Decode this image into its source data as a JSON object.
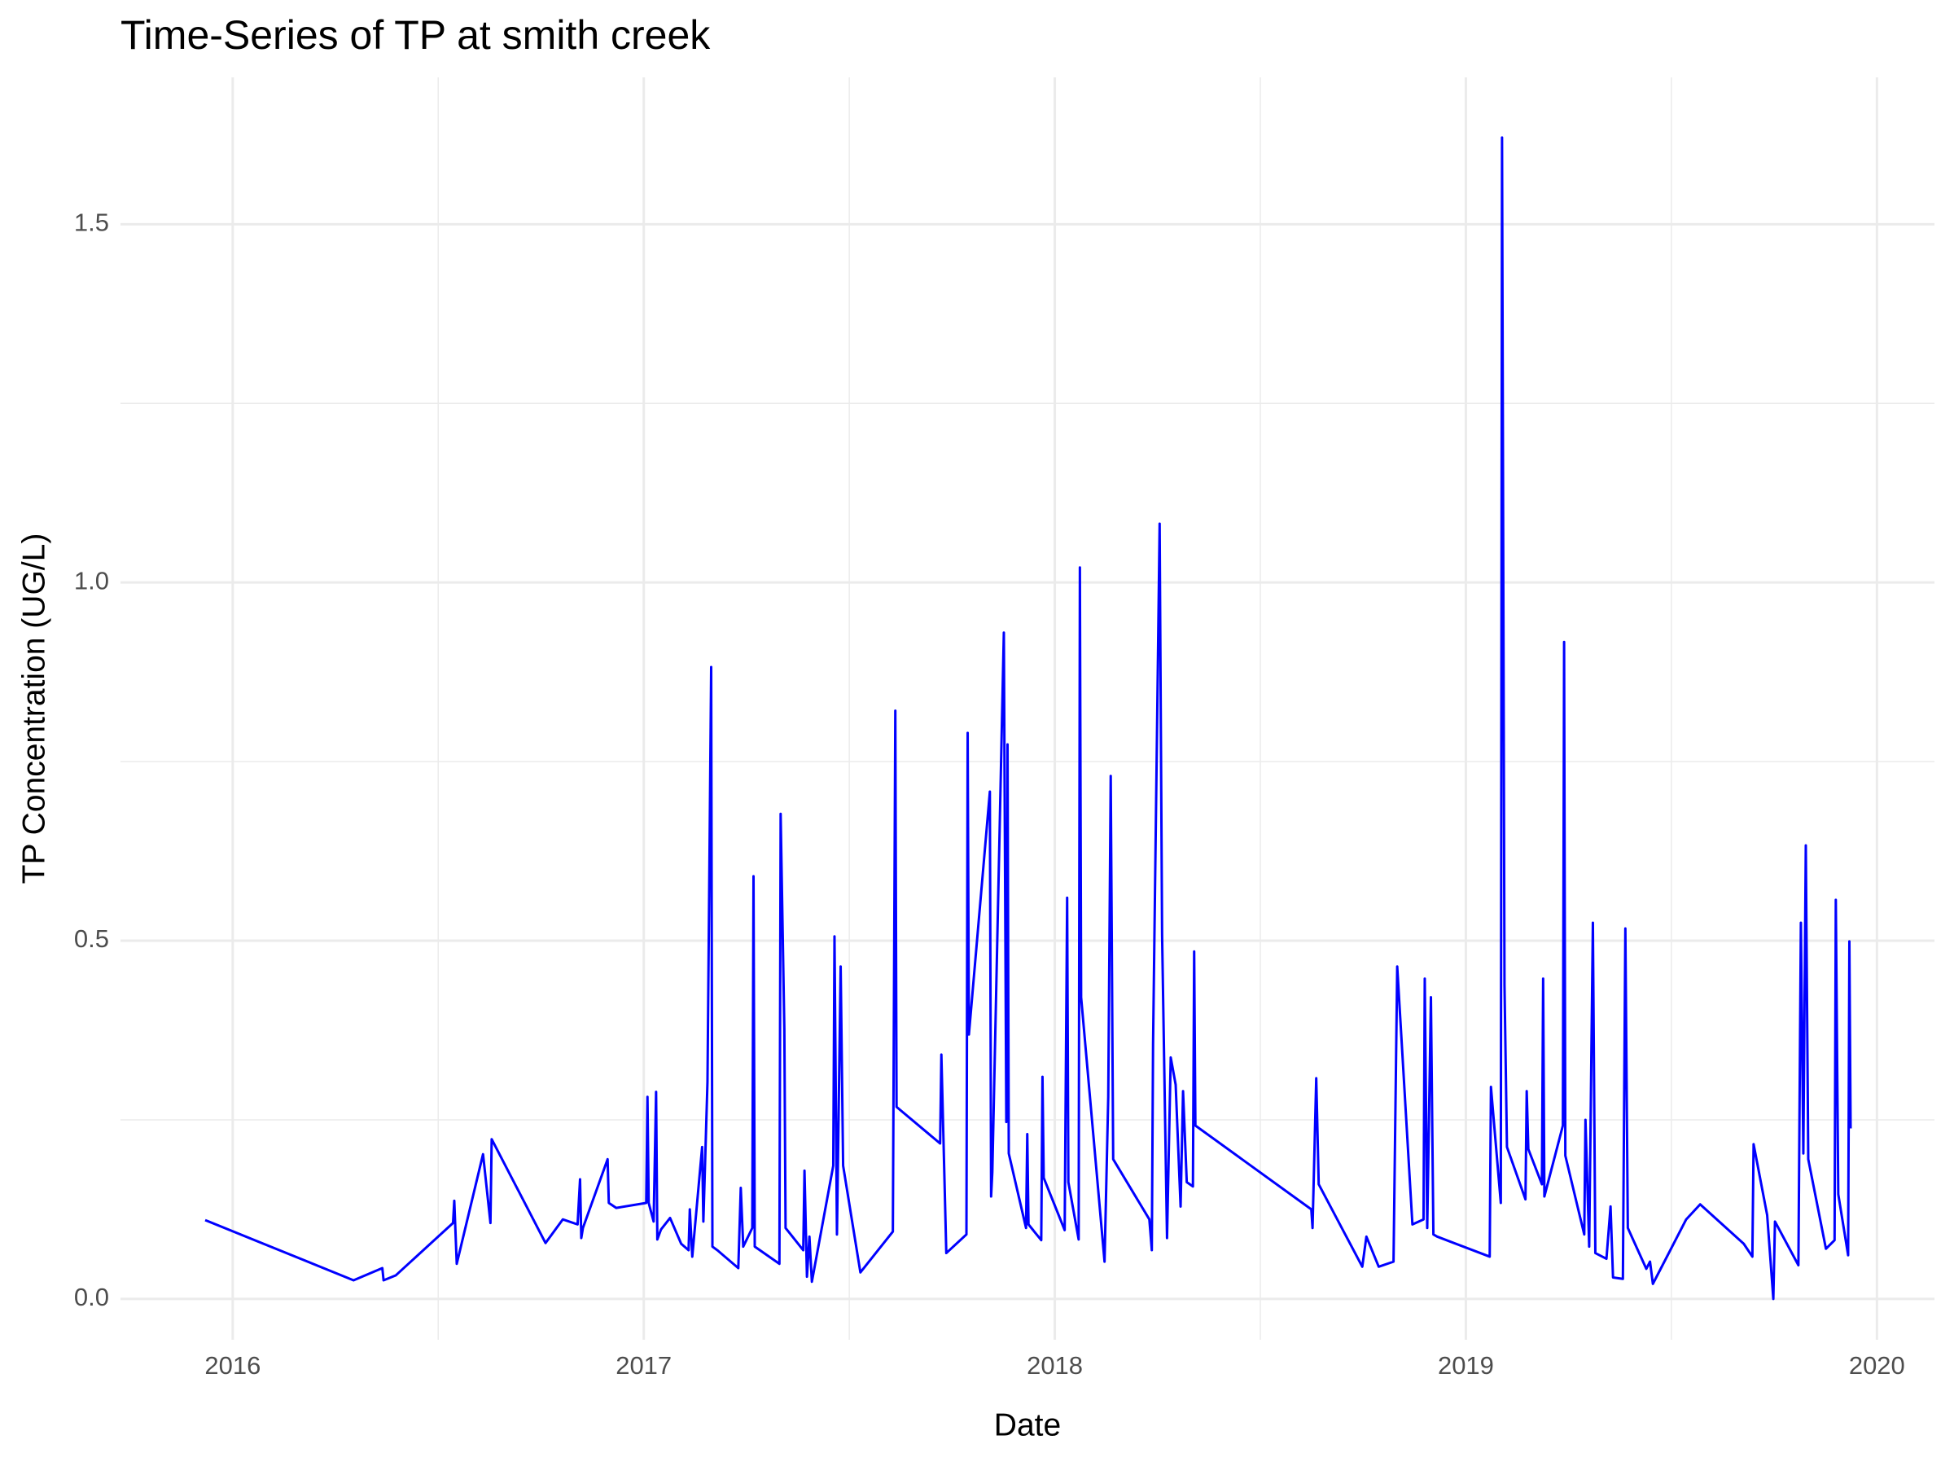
{
  "chart_data": {
    "type": "line",
    "title": "Time-Series of TP at smith creek",
    "x_label": "Date",
    "y_label": "TP Concentration (UG/L)",
    "color": "blue",
    "grid": true,
    "xlim": [
      2015.727,
      2020.14
    ],
    "ylim": [
      -0.057,
      1.705
    ],
    "xticks": [
      2016,
      2017,
      2018,
      2019,
      2020
    ],
    "yticks": [
      {
        "value": 0,
        "label": "0.0"
      },
      0.5,
      {
        "value": 1,
        "label": "1.0"
      },
      1.5
    ],
    "x": [
      2015.933,
      2016.294,
      2016.364,
      2016.367,
      2016.397,
      2016.536,
      2016.539,
      2016.545,
      2016.609,
      2016.627,
      2016.63,
      2016.761,
      2016.803,
      2016.839,
      2016.845,
      2016.848,
      2016.852,
      2016.912,
      2016.915,
      2016.933,
      2017.006,
      2017.009,
      2017.012,
      2017.024,
      2017.03,
      2017.033,
      2017.042,
      2017.064,
      2017.091,
      2017.109,
      2017.112,
      2017.118,
      2017.142,
      2017.145,
      2017.155,
      2017.164,
      2017.167,
      2017.179,
      2017.23,
      2017.236,
      2017.242,
      2017.264,
      2017.267,
      2017.27,
      2017.33,
      2017.333,
      2017.342,
      2017.345,
      2017.352,
      2017.388,
      2017.391,
      2017.397,
      2017.403,
      2017.409,
      2017.461,
      2017.464,
      2017.47,
      2017.479,
      2017.485,
      2017.527,
      2017.606,
      2017.612,
      2017.615,
      2017.721,
      2017.724,
      2017.736,
      2017.785,
      2017.788,
      2017.791,
      2017.842,
      2017.845,
      2017.848,
      2017.876,
      2017.882,
      2017.885,
      2017.888,
      2017.93,
      2017.933,
      2017.936,
      2017.967,
      2017.97,
      2017.973,
      2018.024,
      2018.03,
      2018.033,
      2018.058,
      2018.061,
      2018.064,
      2018.121,
      2018.13,
      2018.136,
      2018.142,
      2018.23,
      2018.236,
      2018.239,
      2018.255,
      2018.261,
      2018.273,
      2018.282,
      2018.294,
      2018.306,
      2018.312,
      2018.321,
      2018.336,
      2018.339,
      2018.342,
      2018.624,
      2018.627,
      2018.636,
      2018.642,
      2018.748,
      2018.758,
      2018.788,
      2018.824,
      2018.833,
      2018.87,
      2018.897,
      2018.9,
      2018.906,
      2018.915,
      2018.921,
      2018.93,
      2019.058,
      2019.061,
      2019.085,
      2019.088,
      2019.094,
      2019.1,
      2019.145,
      2019.148,
      2019.152,
      2019.185,
      2019.188,
      2019.191,
      2019.236,
      2019.239,
      2019.242,
      2019.288,
      2019.291,
      2019.3,
      2019.309,
      2019.315,
      2019.342,
      2019.352,
      2019.358,
      2019.382,
      2019.388,
      2019.394,
      2019.439,
      2019.448,
      2019.455,
      2019.536,
      2019.57,
      2019.676,
      2019.697,
      2019.7,
      2019.733,
      2019.748,
      2019.752,
      2019.809,
      2019.815,
      2019.821,
      2019.827,
      2019.833,
      2019.876,
      2019.897,
      2019.9,
      2019.906,
      2019.93,
      2019.933,
      2019.936
    ],
    "values": [
      0.11,
      0.026,
      0.043,
      0.026,
      0.033,
      0.106,
      0.137,
      0.049,
      0.202,
      0.106,
      0.223,
      0.078,
      0.111,
      0.104,
      0.167,
      0.085,
      0.099,
      0.195,
      0.134,
      0.127,
      0.134,
      0.282,
      0.134,
      0.108,
      0.289,
      0.083,
      0.097,
      0.113,
      0.077,
      0.068,
      0.125,
      0.059,
      0.212,
      0.108,
      0.303,
      0.882,
      0.073,
      0.068,
      0.043,
      0.155,
      0.073,
      0.099,
      0.59,
      0.073,
      0.049,
      0.677,
      0.377,
      0.099,
      0.094,
      0.068,
      0.179,
      0.031,
      0.087,
      0.024,
      0.186,
      0.506,
      0.09,
      0.464,
      0.186,
      0.037,
      0.094,
      0.821,
      0.268,
      0.217,
      0.341,
      0.064,
      0.09,
      0.79,
      0.369,
      0.708,
      0.143,
      0.177,
      0.93,
      0.247,
      0.774,
      0.203,
      0.099,
      0.23,
      0.104,
      0.082,
      0.31,
      0.169,
      0.096,
      0.56,
      0.163,
      0.083,
      1.021,
      0.421,
      0.052,
      0.282,
      0.73,
      0.195,
      0.111,
      0.068,
      0.355,
      1.082,
      0.508,
      0.085,
      0.337,
      0.299,
      0.129,
      0.29,
      0.163,
      0.157,
      0.485,
      0.242,
      0.125,
      0.099,
      0.308,
      0.16,
      0.045,
      0.087,
      0.045,
      0.052,
      0.464,
      0.104,
      0.111,
      0.447,
      0.099,
      0.421,
      0.09,
      0.087,
      0.059,
      0.296,
      0.134,
      1.621,
      0.438,
      0.212,
      0.139,
      0.29,
      0.209,
      0.16,
      0.447,
      0.143,
      0.242,
      0.917,
      0.2,
      0.09,
      0.25,
      0.073,
      0.525,
      0.064,
      0.056,
      0.129,
      0.03,
      0.028,
      0.517,
      0.099,
      0.042,
      0.052,
      0.021,
      0.111,
      0.132,
      0.077,
      0.059,
      0.216,
      0.117,
      0,
      0.108,
      0.047,
      0.525,
      0.203,
      0.633,
      0.195,
      0.07,
      0.082,
      0.557,
      0.146,
      0.061,
      0.499,
      0.238
    ]
  }
}
